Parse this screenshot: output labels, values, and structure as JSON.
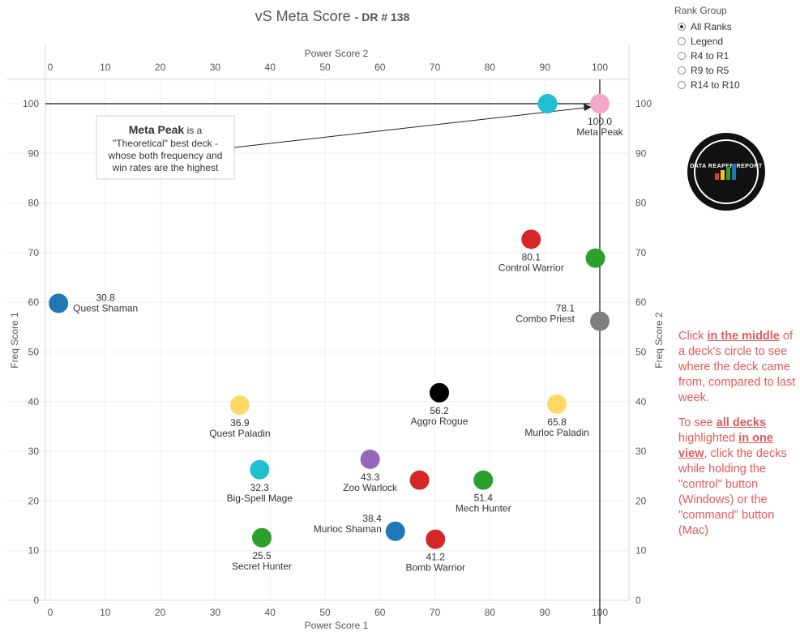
{
  "header": {
    "title": "vS Meta Score",
    "subtitle": "DR # 138"
  },
  "rank_group": {
    "title": "Rank Group",
    "options": [
      {
        "label": "All Ranks",
        "selected": true
      },
      {
        "label": "Legend",
        "selected": false
      },
      {
        "label": "R4 to R1",
        "selected": false
      },
      {
        "label": "R9 to R5",
        "selected": false
      },
      {
        "label": "R14 to R10",
        "selected": false
      }
    ]
  },
  "logo": {
    "text": "DATA REAPER REPORT"
  },
  "annotation": {
    "bold": "Meta Peak",
    "text1": "is a",
    "text2": "\"Theoretical\" best deck -",
    "text3": "whose both frequency and",
    "text4": "win rates are the highest"
  },
  "instructions": {
    "p1_a": "Click ",
    "p1_b": "in the middle",
    "p1_c": " of a deck's circle to see where the deck came from, compared to last week.",
    "p2_a": "To see ",
    "p2_b": "all decks ",
    "p2_c": " highlighted ",
    "p2_d": "in one view",
    "p2_e": ", click the decks while holding the \"control\" button (Windows) or the \"command\" button (Mac)"
  },
  "chart_data": {
    "type": "scatter",
    "title": "vS Meta Score - DR # 138",
    "xlabel_bottom": "Power Score 1",
    "xlabel_top": "Power Score 2",
    "ylabel_left": "Freq Score 1",
    "ylabel_right": "Freq Score 2",
    "xlim": [
      -1,
      105
    ],
    "ylim": [
      -1,
      105
    ],
    "xticks": [
      0,
      10,
      20,
      30,
      40,
      50,
      60,
      70,
      80,
      90,
      100
    ],
    "yticks": [
      0,
      10,
      20,
      30,
      40,
      50,
      60,
      70,
      80,
      90,
      100
    ],
    "grid": true,
    "reference_lines": {
      "x": 100,
      "y": 100
    },
    "points": [
      {
        "name": "Meta Peak",
        "score": "100.0",
        "x": 100,
        "y": 100,
        "color": "#f4a7c8"
      },
      {
        "name": "",
        "score": "",
        "x": 90.5,
        "y": 100,
        "color": "#1dbfd1"
      },
      {
        "name": "Control Warrior",
        "score": "80.1",
        "x": 87.5,
        "y": 72.7,
        "color": "#d62728"
      },
      {
        "name": "",
        "score": "",
        "x": 99.2,
        "y": 68.9,
        "color": "#2ca02c"
      },
      {
        "name": "Quest Shaman",
        "score": "30.8",
        "x": 1.5,
        "y": 59.8,
        "color": "#1f77b4"
      },
      {
        "name": "Combo Priest",
        "score": "78.1",
        "x": 100,
        "y": 56.2,
        "color": "#7f7f7f"
      },
      {
        "name": "Aggro Rogue",
        "score": "56.2",
        "x": 70.8,
        "y": 41.8,
        "color": "#000000"
      },
      {
        "name": "Quest Paladin",
        "score": "36.9",
        "x": 34.5,
        "y": 39.3,
        "color": "#ffd966"
      },
      {
        "name": "Murloc Paladin",
        "score": "65.8",
        "x": 92.2,
        "y": 39.5,
        "color": "#ffd966"
      },
      {
        "name": "Zoo Warlock",
        "score": "43.3",
        "x": 58.2,
        "y": 28.4,
        "color": "#9467bd"
      },
      {
        "name": "Big-Spell Mage",
        "score": "32.3",
        "x": 38.1,
        "y": 26.3,
        "color": "#1dbfd1"
      },
      {
        "name": "",
        "score": "",
        "x": 67.2,
        "y": 24.2,
        "color": "#d62728"
      },
      {
        "name": "Mech Hunter",
        "score": "51.4",
        "x": 78.8,
        "y": 24.2,
        "color": "#2ca02c"
      },
      {
        "name": "Murloc Shaman",
        "score": "38.4",
        "x": 62.8,
        "y": 13.9,
        "color": "#1f77b4"
      },
      {
        "name": "Secret Hunter",
        "score": "25.5",
        "x": 38.5,
        "y": 12.6,
        "color": "#2ca02c"
      },
      {
        "name": "Bomb Warrior",
        "score": "41.2",
        "x": 70.1,
        "y": 12.3,
        "color": "#d62728"
      }
    ]
  }
}
